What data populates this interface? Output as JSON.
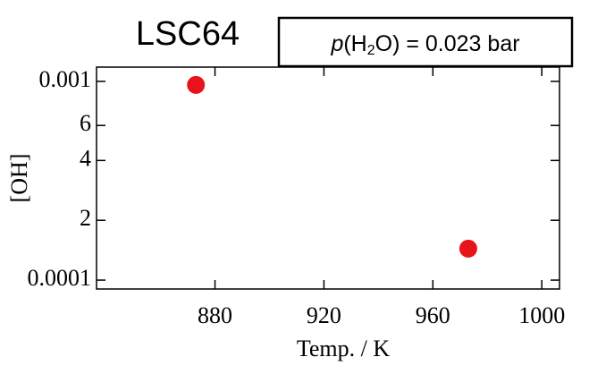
{
  "chart_data": {
    "type": "scatter",
    "title": "LSC64",
    "annotation": {
      "italic": "p",
      "open": "(H",
      "sub": "2",
      "close": "O) = 0.023 bar"
    },
    "x_label": "Temp. / K",
    "y_label": "[OH]",
    "x": [
      873,
      973
    ],
    "values": [
      0.00096,
      0.000144
    ],
    "color": "#e8141b",
    "xlim": [
      836.5,
      1006.5
    ],
    "xticks": [
      880,
      920,
      960,
      1000
    ],
    "ylim": [
      9.02e-05,
      0.00118
    ],
    "y_log": true,
    "yticks": [
      0.0001,
      {
        "value": 0.0002,
        "label": "2"
      },
      {
        "value": 0.0004,
        "label": "4"
      },
      {
        "value": 0.0006,
        "label": "6"
      },
      0.001
    ]
  }
}
